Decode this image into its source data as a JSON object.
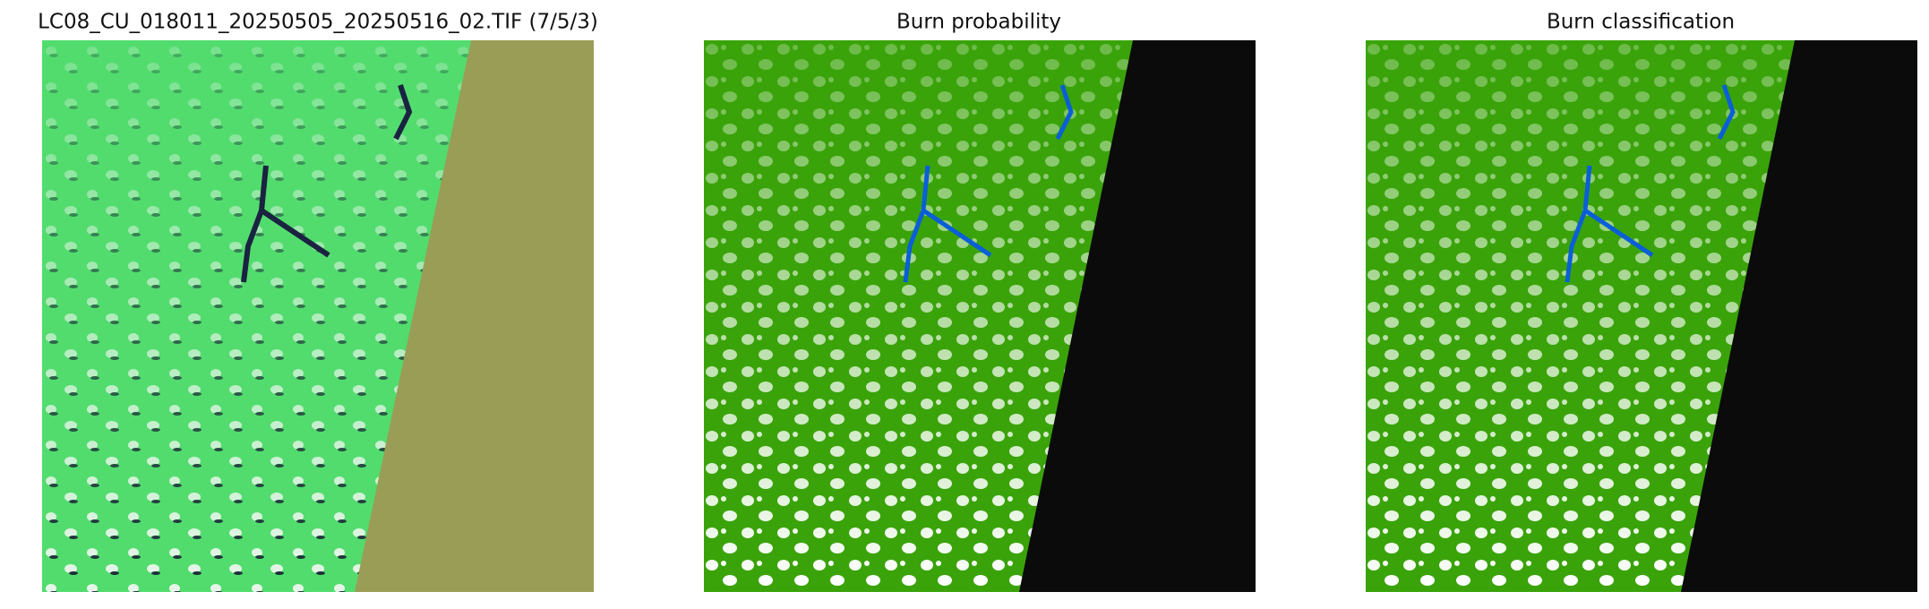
{
  "panels": [
    {
      "title": "LC08_CU_018011_20250505_20250516_02.TIF (7/5/3)"
    },
    {
      "title": "Burn probability"
    },
    {
      "title": "Burn classification"
    }
  ]
}
